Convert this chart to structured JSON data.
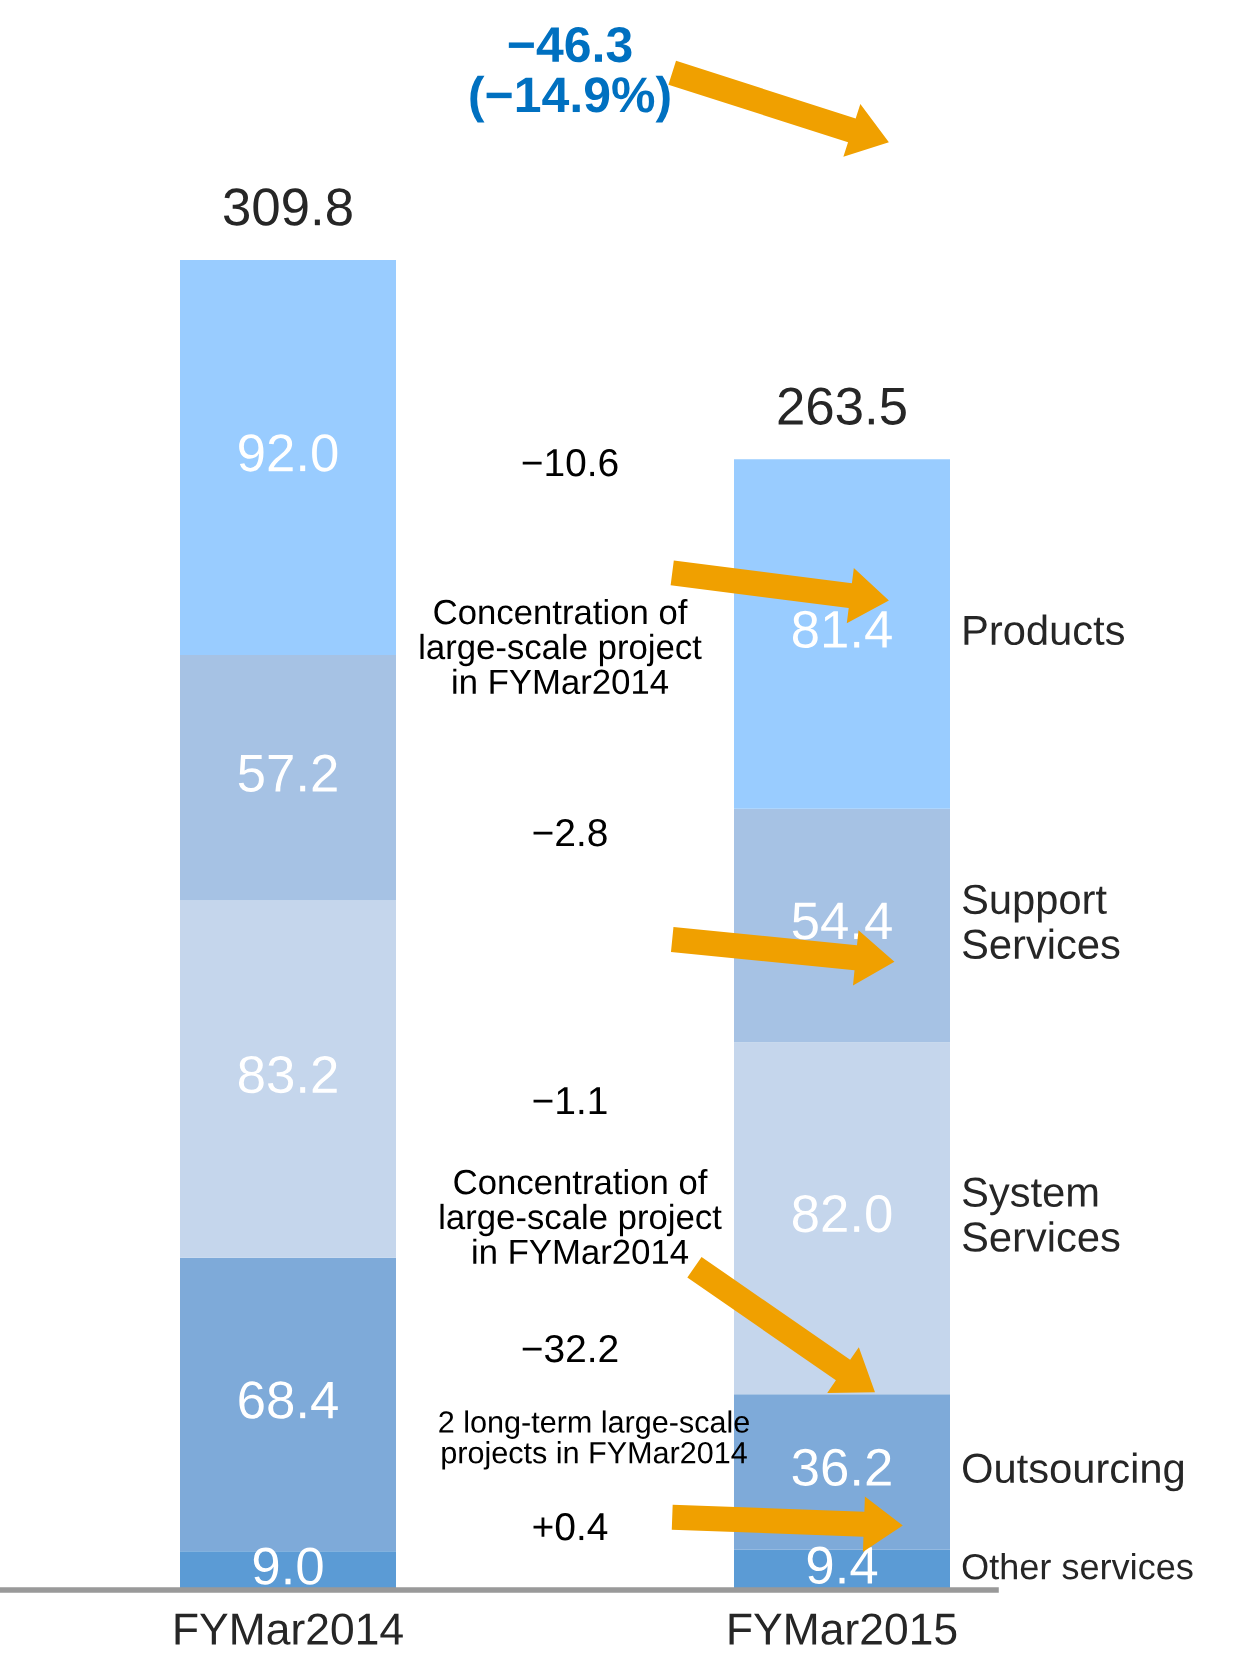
{
  "chart_data": {
    "type": "bar",
    "stacked": true,
    "categories": [
      "FYMar2014",
      "FYMar2015"
    ],
    "series": [
      {
        "name": "Other services",
        "color": "#5b9bd5",
        "values": [
          9.0,
          9.4
        ],
        "value_labels": [
          "9.0",
          "9.4"
        ]
      },
      {
        "name": "Outsourcing",
        "color": "#7eaad9",
        "values": [
          68.4,
          36.2
        ],
        "value_labels": [
          "68.4",
          "36.2"
        ]
      },
      {
        "name": "System Services",
        "color": "#c5d6ec",
        "values": [
          83.2,
          82.0
        ],
        "value_labels": [
          "83.2",
          "82.0"
        ]
      },
      {
        "name": "Support Services",
        "color": "#a6c2e4",
        "values": [
          57.2,
          54.4
        ],
        "value_labels": [
          "57.2",
          "54.4"
        ]
      },
      {
        "name": "Products",
        "color": "#99ccff",
        "values": [
          92.0,
          81.4
        ],
        "value_labels": [
          "92.0",
          "81.4"
        ]
      }
    ],
    "totals": [
      "309.8",
      "263.5"
    ],
    "legend": false,
    "grid": false,
    "tick_labels": "x",
    "annotations": [
      "−46.3\n(−14.9%)",
      "−10.6",
      "Concentration of\nlarge-scale project\nin FYMar2014",
      "−2.8",
      "−1.1",
      "Concentration of\nlarge-scale project\nin FYMar2014",
      "−32.2",
      "2 long-term large-scale\nprojects in FYMar2014",
      "+0.4"
    ]
  }
}
